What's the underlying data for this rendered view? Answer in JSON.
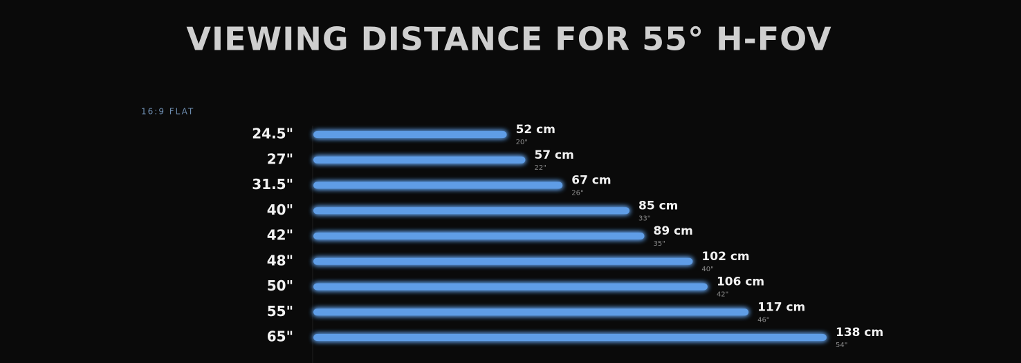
{
  "chart_data": {
    "type": "bar",
    "orientation": "horizontal",
    "title": "VIEWING DISTANCE FOR 55° H-FOV",
    "subtitle": "16:9 FLAT",
    "categories": [
      "24.5\"",
      "27\"",
      "31.5\"",
      "40\"",
      "42\"",
      "48\"",
      "50\"",
      "55\"",
      "65\""
    ],
    "values": [
      52,
      57,
      67,
      85,
      89,
      102,
      106,
      117,
      138
    ],
    "value_labels": [
      "52 cm",
      "57 cm",
      "67 cm",
      "85 cm",
      "89 cm",
      "102 cm",
      "106 cm",
      "117 cm",
      "138 cm"
    ],
    "value_labels_inches": [
      "20\"",
      "22\"",
      "26\"",
      "33\"",
      "35\"",
      "40\"",
      "42\"",
      "46\"",
      "54\""
    ],
    "color": "#5f9de6"
  }
}
